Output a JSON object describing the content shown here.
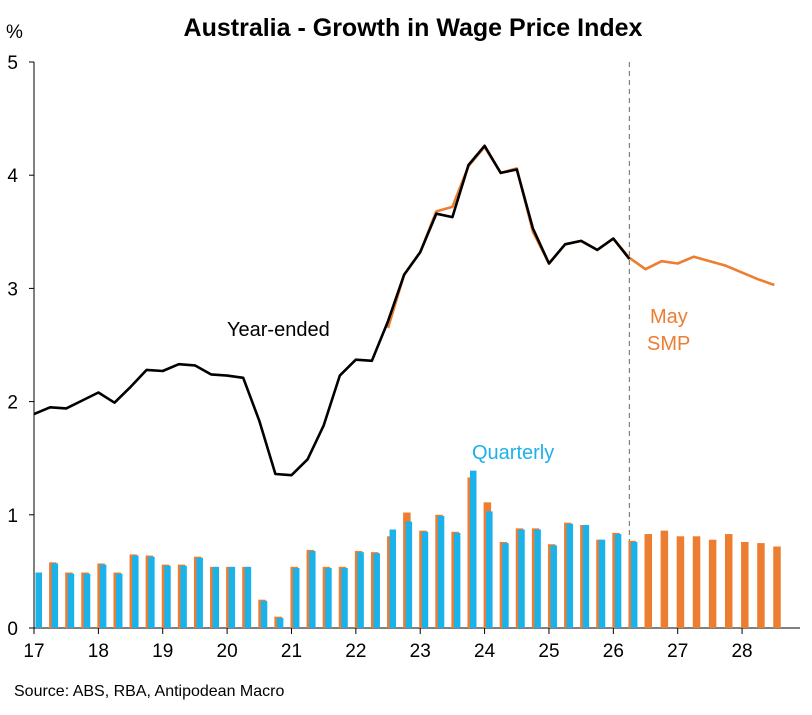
{
  "chart_data": {
    "type": "bar+line",
    "title": "Australia - Growth in Wage Price Index",
    "y_unit": "%",
    "ylim": [
      0,
      5
    ],
    "y_ticks": [
      0,
      1,
      2,
      3,
      4,
      5
    ],
    "x_ticks": [
      "17",
      "18",
      "19",
      "20",
      "21",
      "22",
      "23",
      "24",
      "25",
      "26",
      "27",
      "28"
    ],
    "forecast_divider_x": 26.25,
    "source": "Source: ABS, RBA, Antipodean Macro",
    "annotations": {
      "year_ended": "Year-ended",
      "quarterly": "Quarterly",
      "smp": [
        "May",
        "SMP"
      ]
    },
    "colors": {
      "actual_line": "#000000",
      "forecast": "#ED7D31",
      "quarterly_actual": "#1BB2EA",
      "divider": "#808080"
    },
    "quarters_x": [
      17.0,
      17.25,
      17.5,
      17.75,
      18.0,
      18.25,
      18.5,
      18.75,
      19.0,
      19.25,
      19.5,
      19.75,
      20.0,
      20.25,
      20.5,
      20.75,
      21.0,
      21.25,
      21.5,
      21.75,
      22.0,
      22.25,
      22.5,
      22.75,
      23.0,
      23.25,
      23.5,
      23.75,
      24.0,
      24.25,
      24.5,
      24.75,
      25.0,
      25.25,
      25.5,
      25.75,
      26.0,
      26.25,
      26.5,
      26.75,
      27.0,
      27.25,
      27.5,
      27.75,
      28.0,
      28.25,
      28.5
    ],
    "series": [
      {
        "name": "Year-ended",
        "kind": "line",
        "values": [
          1.89,
          1.95,
          1.94,
          2.01,
          2.08,
          1.99,
          2.13,
          2.28,
          2.27,
          2.33,
          2.32,
          2.24,
          2.23,
          2.21,
          1.83,
          1.36,
          1.35,
          1.49,
          1.79,
          2.23,
          2.37,
          2.36,
          2.71,
          3.12,
          3.32,
          3.66,
          3.63,
          4.09,
          4.26,
          4.02,
          4.05,
          3.53,
          3.22,
          3.39,
          3.42,
          3.34,
          3.44,
          3.26,
          null,
          null,
          null,
          null,
          null,
          null,
          null,
          null,
          null
        ]
      },
      {
        "name": "May SMP",
        "kind": "line",
        "values": [
          null,
          null,
          null,
          null,
          null,
          null,
          null,
          null,
          null,
          null,
          null,
          null,
          null,
          null,
          null,
          null,
          null,
          null,
          null,
          null,
          null,
          null,
          2.65,
          3.12,
          3.32,
          3.68,
          3.72,
          4.08,
          4.25,
          4.02,
          4.06,
          3.5,
          3.22,
          3.39,
          3.42,
          3.34,
          3.44,
          3.27,
          3.17,
          3.24,
          3.22,
          3.28,
          3.24,
          3.2,
          3.14,
          3.08,
          3.03
        ]
      },
      {
        "name": "Quarterly",
        "kind": "bar",
        "values": [
          0.49,
          0.57,
          0.48,
          0.48,
          0.56,
          0.48,
          0.64,
          0.63,
          0.55,
          0.55,
          0.62,
          0.54,
          0.54,
          0.54,
          0.24,
          0.09,
          0.53,
          0.68,
          0.53,
          0.53,
          0.67,
          0.66,
          0.87,
          0.94,
          0.85,
          0.99,
          0.84,
          1.39,
          1.03,
          0.75,
          0.87,
          0.87,
          0.73,
          0.92,
          0.91,
          0.78,
          0.83,
          0.76,
          null,
          null,
          null,
          null,
          null,
          null,
          null,
          null,
          null
        ]
      },
      {
        "name": "Quarterly May SMP",
        "kind": "bar",
        "values": [
          null,
          0.58,
          0.49,
          0.49,
          0.57,
          0.49,
          0.65,
          0.64,
          0.56,
          0.56,
          0.63,
          0.54,
          0.54,
          0.54,
          0.25,
          0.1,
          0.54,
          0.69,
          0.54,
          0.54,
          0.68,
          0.67,
          0.81,
          1.02,
          0.86,
          1.0,
          0.85,
          1.33,
          1.11,
          0.76,
          0.88,
          0.88,
          0.74,
          0.93,
          0.91,
          0.78,
          0.84,
          0.77,
          0.83,
          0.86,
          0.81,
          0.81,
          0.78,
          0.83,
          0.76,
          0.75,
          0.72
        ]
      }
    ]
  }
}
